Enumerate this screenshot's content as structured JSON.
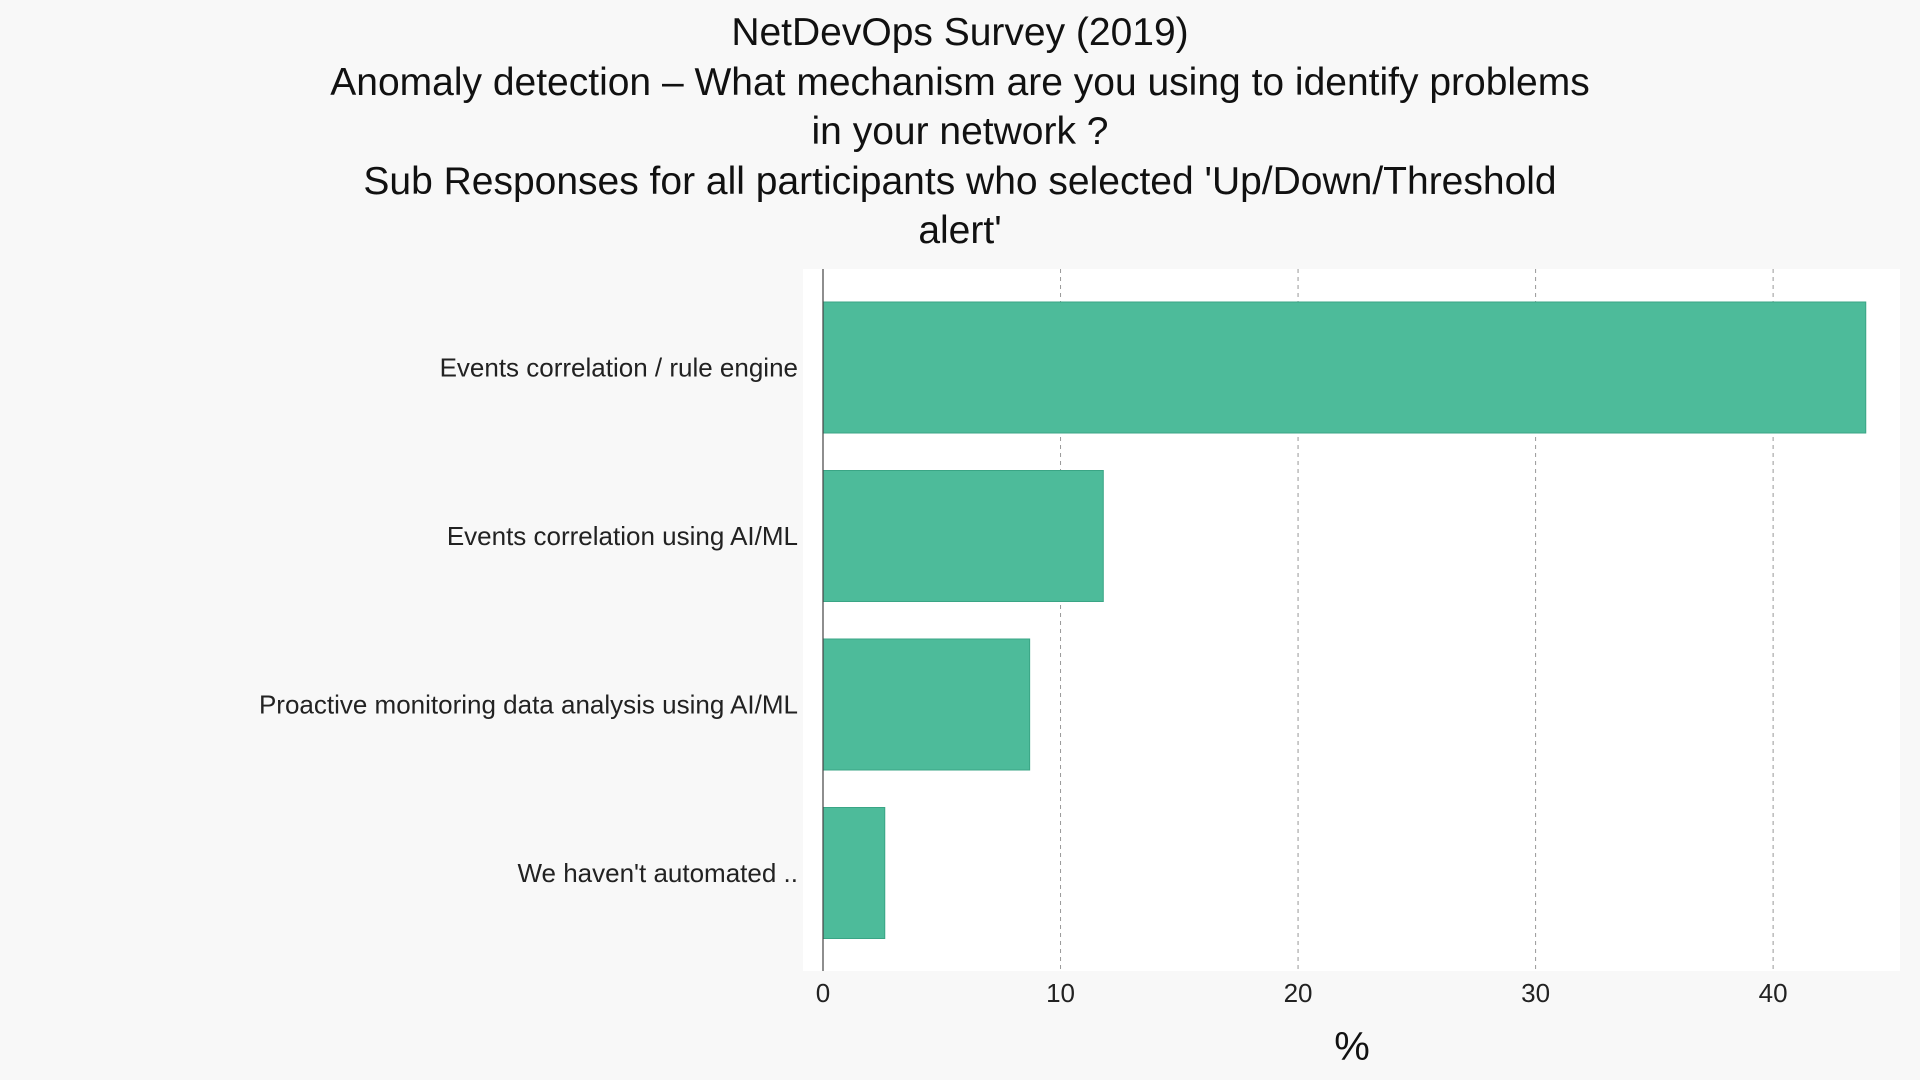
{
  "chart_data": {
    "type": "bar",
    "orientation": "horizontal",
    "title_lines": [
      "NetDevOps Survey (2019)",
      "Anomaly detection – What mechanism are you using to identify problems",
      "in your network ?",
      "Sub Responses for all participants who selected 'Up/Down/Threshold",
      "alert'"
    ],
    "categories": [
      "Events correlation / rule engine",
      "Events correlation using AI/ML",
      "Proactive monitoring data analysis using AI/ML",
      "We haven't automated .."
    ],
    "values": [
      43.9,
      11.8,
      8.7,
      2.6
    ],
    "xlabel": "%",
    "ylabel": "",
    "xlim": [
      0,
      44.5
    ],
    "xticks": [
      0,
      10,
      20,
      30,
      40
    ],
    "grid": "vertical dashed",
    "colors": {
      "bar": "#4dbb9a",
      "bar_edge": "#3aa585",
      "plot_background": "#ffffff",
      "page_background": "#f8f8f8",
      "grid": "#999999"
    }
  }
}
